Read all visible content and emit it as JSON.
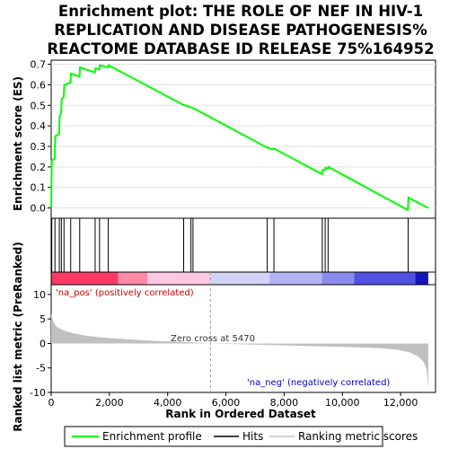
{
  "chart_data": {
    "type": "line",
    "title_lines": [
      "Enrichment plot: THE ROLE OF NEF IN HIV-1",
      "REPLICATION AND DISEASE PATHOGENESIS%",
      "REACTOME DATABASE ID RELEASE 75%164952"
    ],
    "es_panel": {
      "ylabel": "Enrichment score (ES)",
      "ylim": [
        -0.05,
        0.72
      ],
      "yticks": [
        "0.0",
        "0.1",
        "0.2",
        "0.3",
        "0.4",
        "0.5",
        "0.6",
        "0.7"
      ],
      "ytick_values": [
        0,
        0.1,
        0.2,
        0.3,
        0.4,
        0.5,
        0.6,
        0.7
      ],
      "grid": true,
      "series": {
        "name": "Enrichment profile",
        "color": "#00ff00",
        "points": [
          [
            0,
            0.0
          ],
          [
            20,
            0.23
          ],
          [
            120,
            0.24
          ],
          [
            140,
            0.35
          ],
          [
            270,
            0.36
          ],
          [
            290,
            0.45
          ],
          [
            340,
            0.46
          ],
          [
            360,
            0.53
          ],
          [
            430,
            0.54
          ],
          [
            450,
            0.6
          ],
          [
            660,
            0.61
          ],
          [
            680,
            0.655
          ],
          [
            970,
            0.64
          ],
          [
            990,
            0.685
          ],
          [
            1500,
            0.66
          ],
          [
            1520,
            0.68
          ],
          [
            1650,
            0.675
          ],
          [
            1670,
            0.695
          ],
          [
            1950,
            0.685
          ],
          [
            1970,
            0.695
          ],
          [
            4500,
            0.505
          ],
          [
            4800,
            0.49
          ],
          [
            4900,
            0.485
          ],
          [
            7400,
            0.295
          ],
          [
            7600,
            0.285
          ],
          [
            7650,
            0.29
          ],
          [
            9300,
            0.165
          ],
          [
            9320,
            0.185
          ],
          [
            9400,
            0.185
          ],
          [
            9420,
            0.195
          ],
          [
            9500,
            0.19
          ],
          [
            9520,
            0.2
          ],
          [
            12250,
            -0.01
          ],
          [
            12270,
            0.05
          ],
          [
            12950,
            0.0
          ]
        ]
      }
    },
    "hits": [
      20,
      130,
      280,
      350,
      440,
      670,
      980,
      1510,
      1660,
      1960,
      4550,
      4800,
      4870,
      7420,
      7650,
      9310,
      9410,
      9510,
      12260
    ],
    "rank_heat": {
      "pos_label": "'na_pos' (positively correlated)",
      "neg_label": "'na_neg' (negatively correlated)",
      "segments": [
        {
          "start": 0,
          "end": 2300,
          "color": "#ff3864"
        },
        {
          "start": 2300,
          "end": 3300,
          "color": "#ff8aa8"
        },
        {
          "start": 3300,
          "end": 5470,
          "color": "#ffc8e2"
        },
        {
          "start": 5470,
          "end": 7500,
          "color": "#d4d4f8"
        },
        {
          "start": 7500,
          "end": 9300,
          "color": "#b4b4f4"
        },
        {
          "start": 9300,
          "end": 10400,
          "color": "#8a8aee"
        },
        {
          "start": 10400,
          "end": 12500,
          "color": "#5252e2"
        },
        {
          "start": 12500,
          "end": 12950,
          "color": "#1414c0"
        }
      ]
    },
    "metric_panel": {
      "ylabel": "Ranked list metric (PreRanked)",
      "ylim": [
        -10,
        12
      ],
      "yticks": [
        "10",
        "5",
        "0",
        "-5",
        "-10"
      ],
      "ytick_values": [
        10,
        5,
        0,
        -5,
        -10
      ],
      "zero_cross_label": "Zero cross at 5470",
      "zero_cross": 5470,
      "series": {
        "name": "Ranking metric scores",
        "color": "#c0c0c0",
        "points": [
          [
            0,
            6.2
          ],
          [
            50,
            4.8
          ],
          [
            150,
            3.6
          ],
          [
            300,
            3.0
          ],
          [
            500,
            2.5
          ],
          [
            800,
            2.0
          ],
          [
            1200,
            1.6
          ],
          [
            1600,
            1.3
          ],
          [
            2000,
            1.1
          ],
          [
            2500,
            0.9
          ],
          [
            3000,
            0.7
          ],
          [
            3500,
            0.55
          ],
          [
            4000,
            0.4
          ],
          [
            4500,
            0.3
          ],
          [
            5000,
            0.15
          ],
          [
            5470,
            0.0
          ],
          [
            6000,
            -0.1
          ],
          [
            7000,
            -0.25
          ],
          [
            8000,
            -0.4
          ],
          [
            9000,
            -0.55
          ],
          [
            10000,
            -0.7
          ],
          [
            10800,
            -0.85
          ],
          [
            11400,
            -1.0
          ],
          [
            11900,
            -1.3
          ],
          [
            12300,
            -1.8
          ],
          [
            12600,
            -2.6
          ],
          [
            12800,
            -3.8
          ],
          [
            12900,
            -5.5
          ],
          [
            12950,
            -9.5
          ]
        ]
      }
    },
    "xlabel": "Rank in Ordered Dataset",
    "xlim": [
      0,
      13200
    ],
    "xticks": [
      "0",
      "2,000",
      "4,000",
      "6,000",
      "8,000",
      "10,000",
      "12,000"
    ],
    "xtick_values": [
      0,
      2000,
      4000,
      6000,
      8000,
      10000,
      12000
    ],
    "legend": {
      "placement": "bottom",
      "items": [
        {
          "label": "Enrichment profile",
          "color": "#00ff00"
        },
        {
          "label": "Hits",
          "color": "#000000"
        },
        {
          "label": "Ranking metric scores",
          "color": "#c0c0c0"
        }
      ]
    }
  }
}
